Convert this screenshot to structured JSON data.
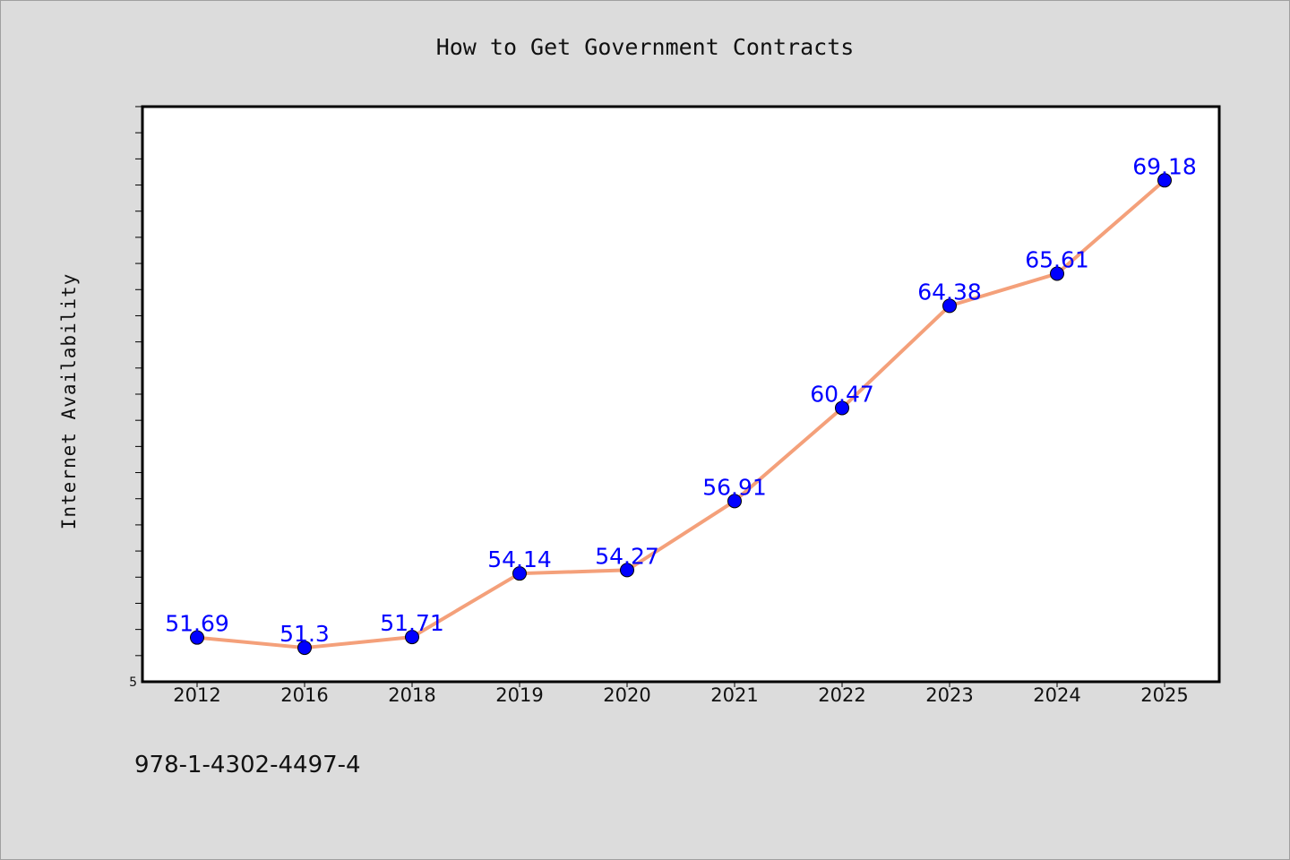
{
  "chart_data": {
    "type": "line",
    "title": "How to Get Government Contracts",
    "xlabel": "",
    "ylabel": "Internet Availability",
    "categories": [
      "2012",
      "2016",
      "2018",
      "2019",
      "2020",
      "2021",
      "2022",
      "2023",
      "2024",
      "2025"
    ],
    "values": [
      51.69,
      51.3,
      51.71,
      54.14,
      54.27,
      56.91,
      60.47,
      64.38,
      65.61,
      69.18
    ],
    "data_labels": [
      "51.69",
      "51.3",
      "51.71",
      "54.14",
      "54.27",
      "56.91",
      "60.47",
      "64.38",
      "65.61",
      "69.18"
    ],
    "ytick_labels": [
      "5"
    ],
    "ylim": [
      50,
      72
    ],
    "minor_tick_step": 1,
    "grid": false,
    "legend": "none",
    "colors": {
      "line": "#f4a07a",
      "marker": "#0000ff",
      "label": "#0000ff",
      "plot_background": "#ffffff",
      "page_background": "#dcdcdc"
    }
  },
  "footer": {
    "text": "978-1-4302-4497-4"
  }
}
